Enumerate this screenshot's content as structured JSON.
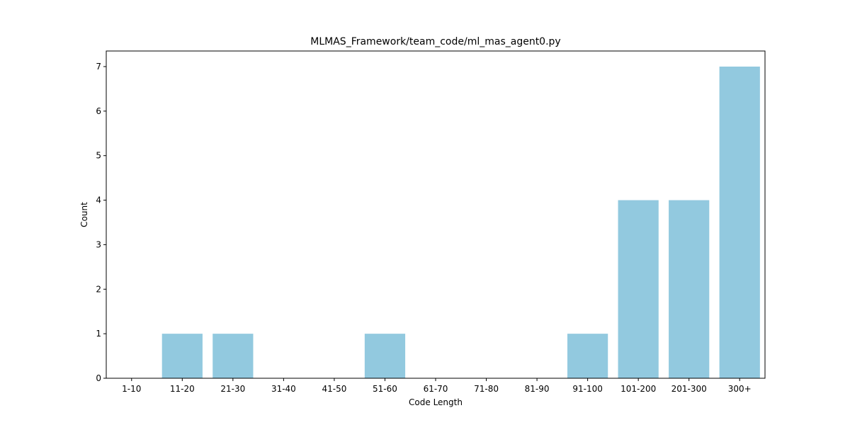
{
  "chart_data": {
    "type": "bar",
    "title": "MLMAS_Framework/team_code/ml_mas_agent0.py",
    "xlabel": "Code Length",
    "ylabel": "Count",
    "categories": [
      "1-10",
      "11-20",
      "21-30",
      "31-40",
      "41-50",
      "51-60",
      "61-70",
      "71-80",
      "81-90",
      "91-100",
      "101-200",
      "201-300",
      "300+"
    ],
    "values": [
      0,
      1,
      1,
      0,
      0,
      1,
      0,
      0,
      0,
      1,
      4,
      4,
      7
    ],
    "ylim": [
      0,
      7.35
    ],
    "yticks": [
      0,
      1,
      2,
      3,
      4,
      5,
      6,
      7
    ],
    "ytick_labels": [
      "0",
      "1",
      "2",
      "3",
      "4",
      "5",
      "6",
      "7"
    ],
    "bar_color": "#92c9df",
    "grid": false,
    "legend": "none"
  }
}
